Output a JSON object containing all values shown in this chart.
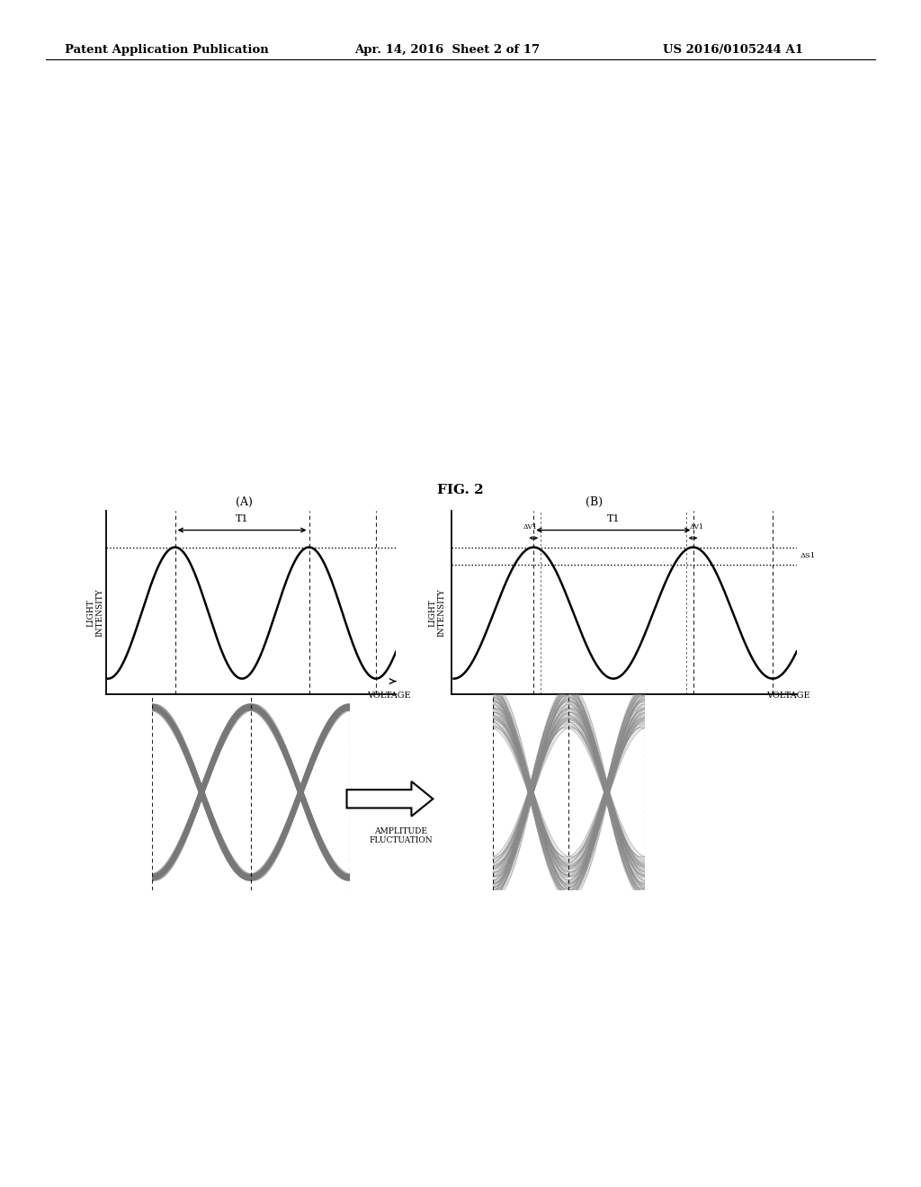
{
  "title": "FIG. 2",
  "header_left": "Patent Application Publication",
  "header_center": "Apr. 14, 2016  Sheet 2 of 17",
  "header_right": "US 2016/0105244 A1",
  "panel_A_label": "(A)",
  "panel_B_label": "(B)",
  "T1_label": "T1",
  "voltage_label": "VOLTAGE",
  "light_intensity_label": "LIGHT\nINTENSITY",
  "dV1_label": "ΔV1",
  "dS1_label": "ΔS1",
  "amplitude_fluctuation_label": "AMPLITUDE\nFLUCTUATION",
  "background_color": "#ffffff",
  "line_color": "#000000"
}
